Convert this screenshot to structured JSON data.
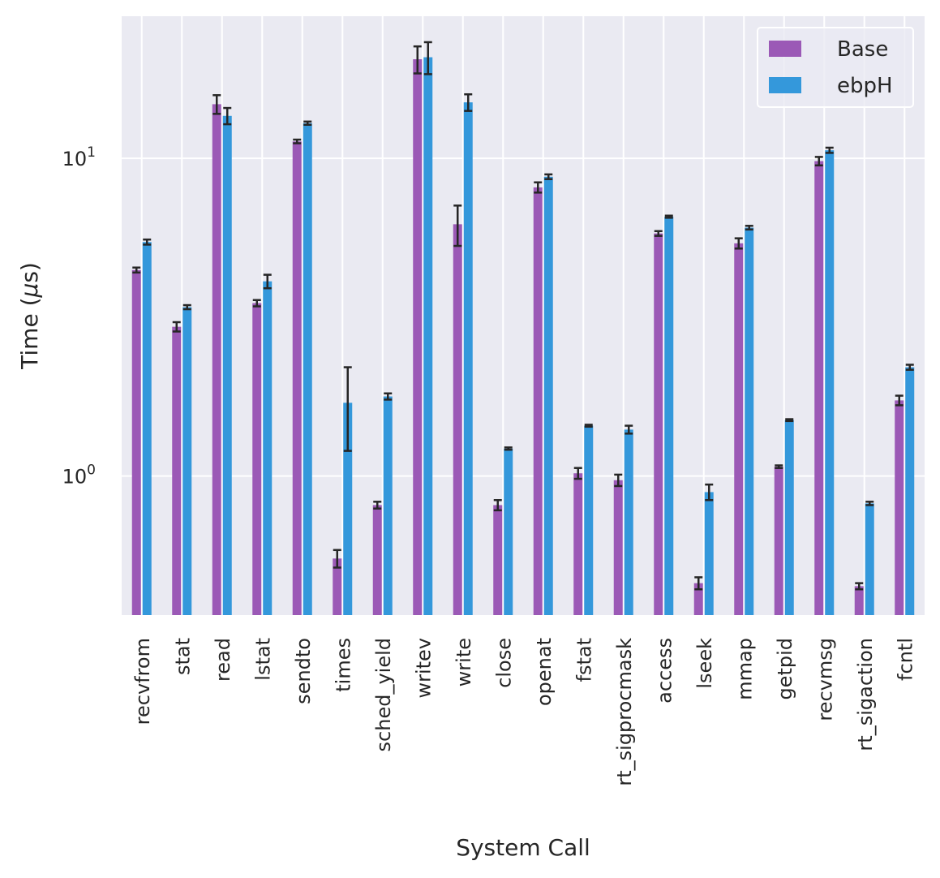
{
  "chart_data": {
    "type": "bar",
    "xlabel": "System Call",
    "ylabel_prefix": "Time (",
    "ylabel_mu": "μ",
    "ylabel_suffix": "s)",
    "yscale": "log",
    "ylim": [
      0.365,
      28
    ],
    "yticks": [
      {
        "value": 1,
        "base": "10",
        "exp": "0"
      },
      {
        "value": 10,
        "base": "10",
        "exp": "1"
      }
    ],
    "grid": true,
    "legend_position": "top-right",
    "categories": [
      "recvfrom",
      "stat",
      "read",
      "lstat",
      "sendto",
      "times",
      "sched_yield",
      "writev",
      "write",
      "close",
      "openat",
      "fstat",
      "rt_sigprocmask",
      "access",
      "lseek",
      "mmap",
      "getpid",
      "recvmsg",
      "rt_sigaction",
      "fcntl"
    ],
    "series": [
      {
        "name": "Base",
        "color": "#9b59b6",
        "values": [
          4.45,
          2.95,
          14.8,
          3.5,
          11.3,
          0.55,
          0.81,
          20.5,
          6.2,
          0.81,
          8.1,
          1.02,
          0.97,
          5.8,
          0.46,
          5.4,
          1.07,
          9.8,
          0.45,
          1.73
        ],
        "err": [
          0.08,
          0.1,
          1.0,
          0.08,
          0.15,
          0.035,
          0.02,
          2.0,
          0.9,
          0.03,
          0.3,
          0.04,
          0.04,
          0.1,
          0.02,
          0.2,
          0.01,
          0.3,
          0.01,
          0.06
        ]
      },
      {
        "name": "ebpH",
        "color": "#3498db",
        "values": [
          5.45,
          3.4,
          13.6,
          4.1,
          12.9,
          1.7,
          1.78,
          20.8,
          15.0,
          1.22,
          8.75,
          1.44,
          1.4,
          6.55,
          0.89,
          6.05,
          1.5,
          10.6,
          0.82,
          2.2
        ],
        "err": [
          0.1,
          0.05,
          0.8,
          0.2,
          0.15,
          0.5,
          0.04,
          2.4,
          0.9,
          0.01,
          0.15,
          0.01,
          0.04,
          0.05,
          0.05,
          0.08,
          0.01,
          0.2,
          0.01,
          0.04
        ]
      }
    ]
  }
}
